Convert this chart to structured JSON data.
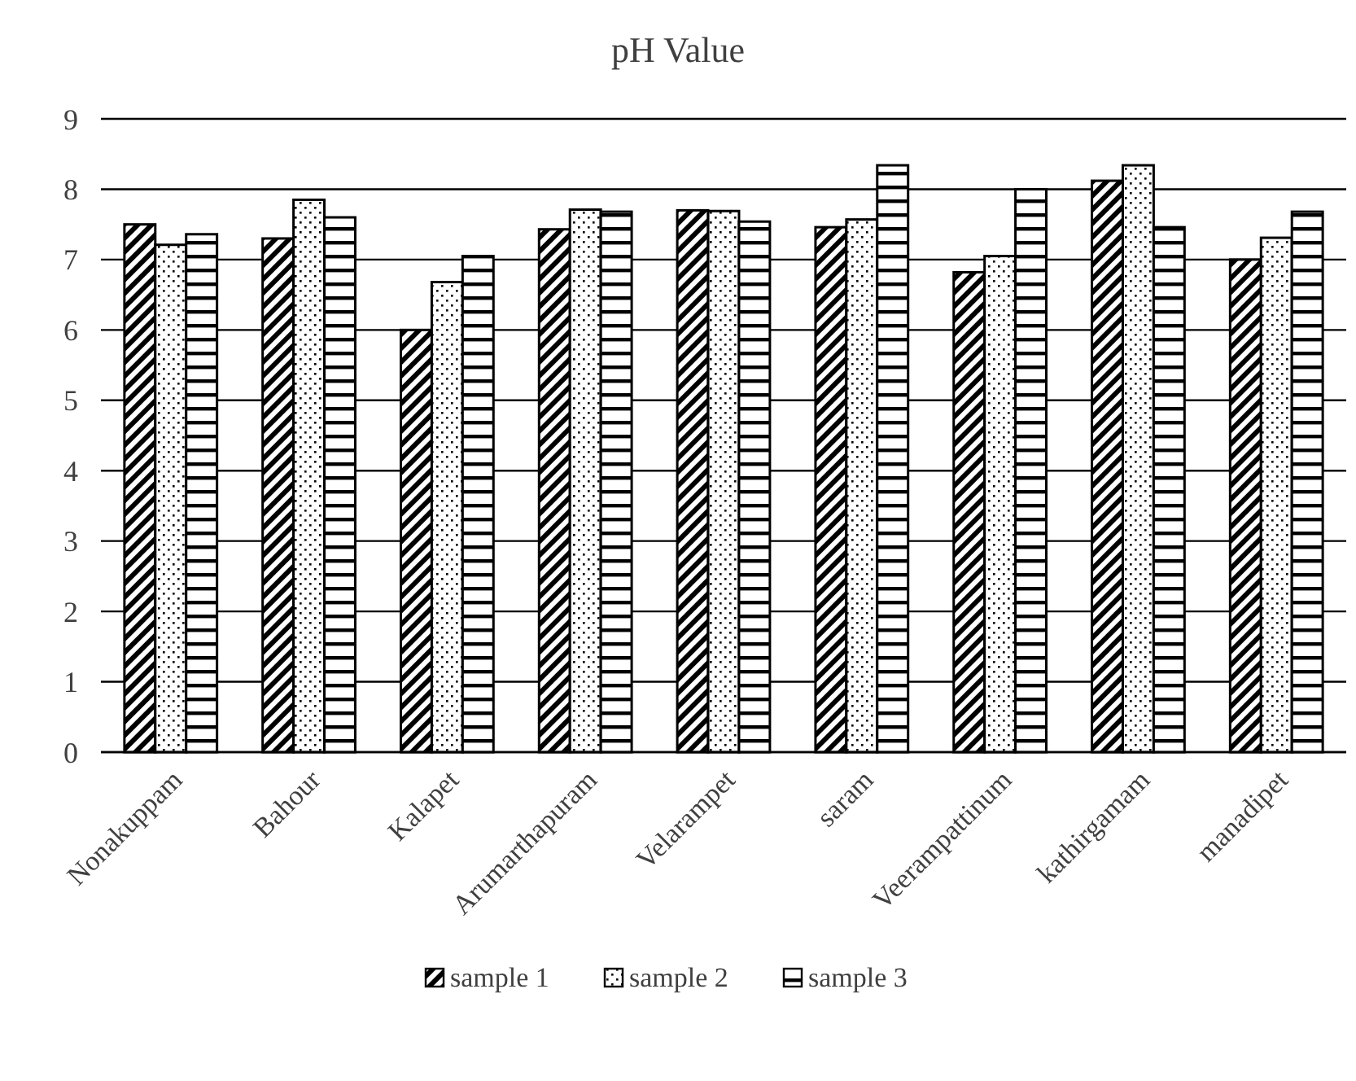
{
  "chart_data": {
    "type": "bar",
    "title": "pH Value",
    "categories": [
      "Nonakuppam",
      "Bahour",
      "Kalapet",
      "Arumarthapuram",
      "Velarampet",
      "saram",
      "Veerampattinum",
      "kathirgamam",
      "manadipet"
    ],
    "series": [
      {
        "name": "sample 1",
        "color": "#000000",
        "values": [
          7.5,
          7.3,
          6.0,
          7.43,
          7.7,
          7.46,
          6.82,
          8.12,
          7.0
        ]
      },
      {
        "name": "sample 2",
        "color": "#000000",
        "values": [
          7.21,
          7.85,
          6.68,
          7.71,
          7.69,
          7.57,
          7.05,
          8.34,
          7.31
        ]
      },
      {
        "name": "sample 3",
        "color": "#000000",
        "values": [
          7.36,
          7.6,
          7.05,
          7.68,
          7.54,
          8.34,
          8.0,
          7.46,
          7.68
        ]
      }
    ],
    "ylim": [
      0,
      9
    ],
    "yticks": [
      0,
      1,
      2,
      3,
      4,
      5,
      6,
      7,
      8,
      9
    ],
    "grid": "y",
    "legend": "bottom"
  }
}
